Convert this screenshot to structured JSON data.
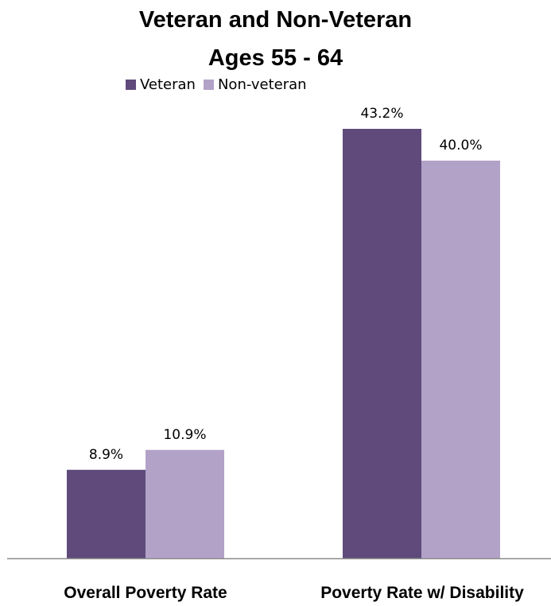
{
  "chart_data": {
    "type": "bar",
    "title": [
      "Veteran and Non-Veteran",
      "Ages 55 - 64"
    ],
    "categories": [
      "Overall Poverty Rate",
      "Poverty Rate w/ Disability"
    ],
    "series": [
      {
        "name": "Veteran",
        "values": [
          8.9,
          43.2
        ],
        "labels": [
          "8.9%",
          "43.2%"
        ],
        "color": "#5f4a7b"
      },
      {
        "name": "Non-veteran",
        "values": [
          10.9,
          40.0
        ],
        "labels": [
          "10.9%",
          "40.0%"
        ],
        "color": "#b3a2c8"
      }
    ],
    "ylim": [
      0,
      50
    ],
    "grid": false,
    "legend_position": "top"
  }
}
